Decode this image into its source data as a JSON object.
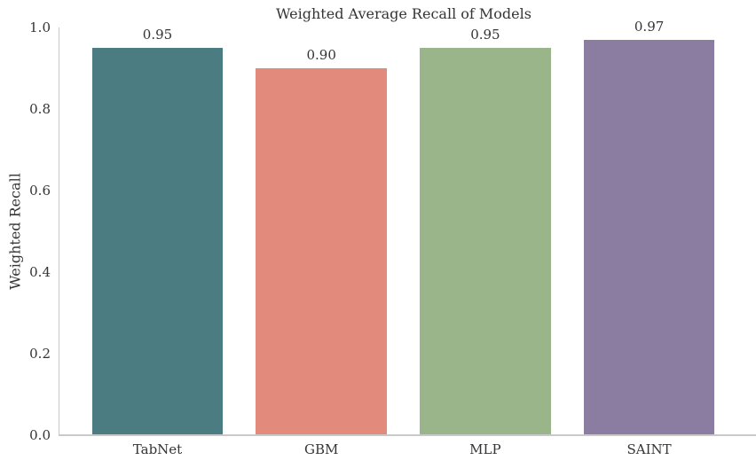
{
  "figure": {
    "title": "Weighted Average Recall of Models",
    "ylabel": "Weighted Recall"
  },
  "chart_data": {
    "type": "bar",
    "title": "Weighted Average Recall of Models",
    "xlabel": "",
    "ylabel": "Weighted Recall",
    "categories": [
      "TabNet",
      "GBM",
      "MLP",
      "SAINT"
    ],
    "values": [
      0.95,
      0.9,
      0.95,
      0.97
    ],
    "bar_labels": [
      "0.95",
      "0.90",
      "0.95",
      "0.97"
    ],
    "bar_colors": [
      "#4a7c82",
      "#e28b7c",
      "#9bb58b",
      "#8a7da1"
    ],
    "ylim": [
      0.0,
      1.0
    ],
    "ytick_labels": [
      "0.0",
      "0.2",
      "0.4",
      "0.6",
      "0.8",
      "1.0"
    ],
    "ytick_values": [
      0.0,
      0.2,
      0.4,
      0.6,
      0.8,
      1.0
    ],
    "grid": false,
    "legend": null,
    "spine_color": "#c9c9c9",
    "text_color": "#343434"
  }
}
